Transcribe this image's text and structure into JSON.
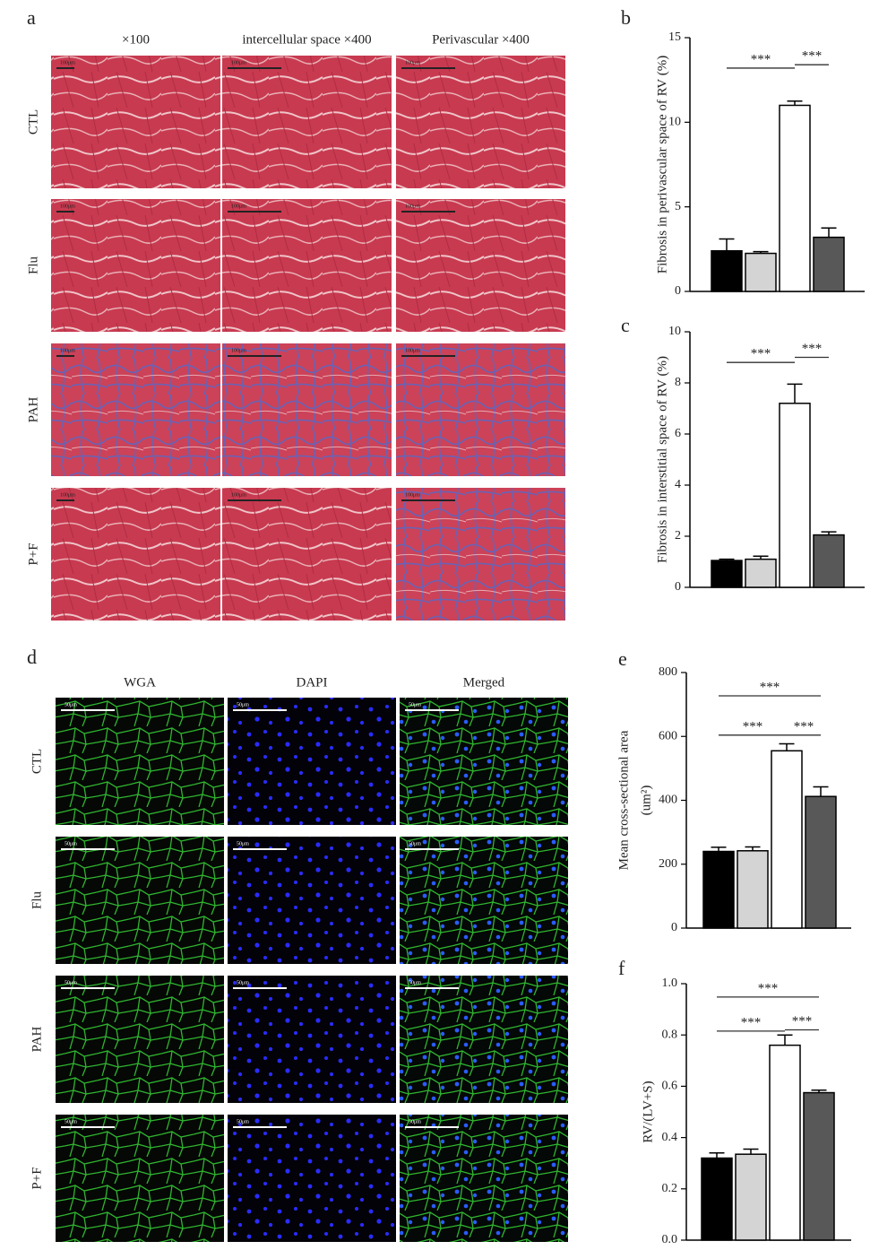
{
  "figure": {
    "panel_a": {
      "letter": "a",
      "columns": [
        "×100",
        "intercellular space ×400",
        "Perivascular ×400"
      ],
      "rows": [
        "CTL",
        "Flu",
        "PAH",
        "P+F"
      ],
      "scale_labels": [
        "100μm",
        "100μm",
        "100μm"
      ]
    },
    "panel_d": {
      "letter": "d",
      "columns": [
        "WGA",
        "DAPI",
        "Merged"
      ],
      "rows": [
        "CTL",
        "Flu",
        "PAH",
        "P+F"
      ],
      "scale_labels": [
        "50μm",
        "50μm",
        "50μm"
      ]
    }
  },
  "chart_data": [
    {
      "type": "bar",
      "letter": "b",
      "ylabel": "Fibrosis in perivascular space of RV  (%)",
      "values": [
        2.4,
        2.25,
        11.0,
        3.2
      ],
      "errors": [
        0.7,
        0.1,
        0.25,
        0.55
      ],
      "colors": [
        "#000000",
        "#d4d4d4",
        "#ffffff",
        "#585858"
      ],
      "ylim": [
        0,
        15
      ],
      "yticks": [
        0,
        5,
        10,
        15
      ],
      "annotations": [
        {
          "text": "***",
          "x": [
            0,
            2
          ],
          "y": 13.2
        },
        {
          "text": "***",
          "x": [
            2,
            3
          ],
          "y": 13.4
        }
      ]
    },
    {
      "type": "bar",
      "letter": "c",
      "ylabel": "Fibrosis in interstitial space of RV  (%)",
      "values": [
        1.05,
        1.1,
        7.2,
        2.05
      ],
      "errors": [
        0.05,
        0.12,
        0.75,
        0.12
      ],
      "colors": [
        "#000000",
        "#d4d4d4",
        "#ffffff",
        "#585858"
      ],
      "ylim": [
        0,
        10
      ],
      "yticks": [
        0,
        2,
        4,
        6,
        8,
        10
      ],
      "annotations": [
        {
          "text": "***",
          "x": [
            0,
            2
          ],
          "y": 8.8
        },
        {
          "text": "***",
          "x": [
            2,
            3
          ],
          "y": 9.0
        }
      ]
    },
    {
      "type": "bar",
      "letter": "e",
      "ylabel": [
        "Mean cross-sectional area",
        "(um²)"
      ],
      "values": [
        240,
        242,
        555,
        412
      ],
      "errors": [
        13,
        12,
        22,
        30
      ],
      "colors": [
        "#000000",
        "#d4d4d4",
        "#ffffff",
        "#585858"
      ],
      "ylim": [
        0,
        800
      ],
      "yticks": [
        0,
        200,
        400,
        600,
        800
      ],
      "annotations": [
        {
          "text": "***",
          "x": [
            0,
            3
          ],
          "y": 727
        },
        {
          "text": "***",
          "x": [
            0,
            2
          ],
          "y": 604
        },
        {
          "text": "***",
          "x": [
            2,
            3
          ],
          "y": 604
        }
      ]
    },
    {
      "type": "bar",
      "letter": "f",
      "ylabel": "RV/(LV+S)",
      "values": [
        0.32,
        0.335,
        0.76,
        0.575
      ],
      "errors": [
        0.02,
        0.02,
        0.04,
        0.01
      ],
      "colors": [
        "#000000",
        "#d4d4d4",
        "#ffffff",
        "#585858"
      ],
      "ylim": [
        0,
        1.0
      ],
      "yticks": [
        {
          "value": 0,
          "label": "0.0"
        },
        0.2,
        0.4,
        0.6,
        0.8,
        {
          "value": 1.0,
          "label": "1.0"
        }
      ],
      "annotations": [
        {
          "text": "***",
          "x": [
            0,
            3
          ],
          "y": 0.948
        },
        {
          "text": "***",
          "x": [
            0,
            2
          ],
          "y": 0.815
        },
        {
          "text": "***",
          "x": [
            2,
            3
          ],
          "y": 0.82
        }
      ]
    }
  ]
}
